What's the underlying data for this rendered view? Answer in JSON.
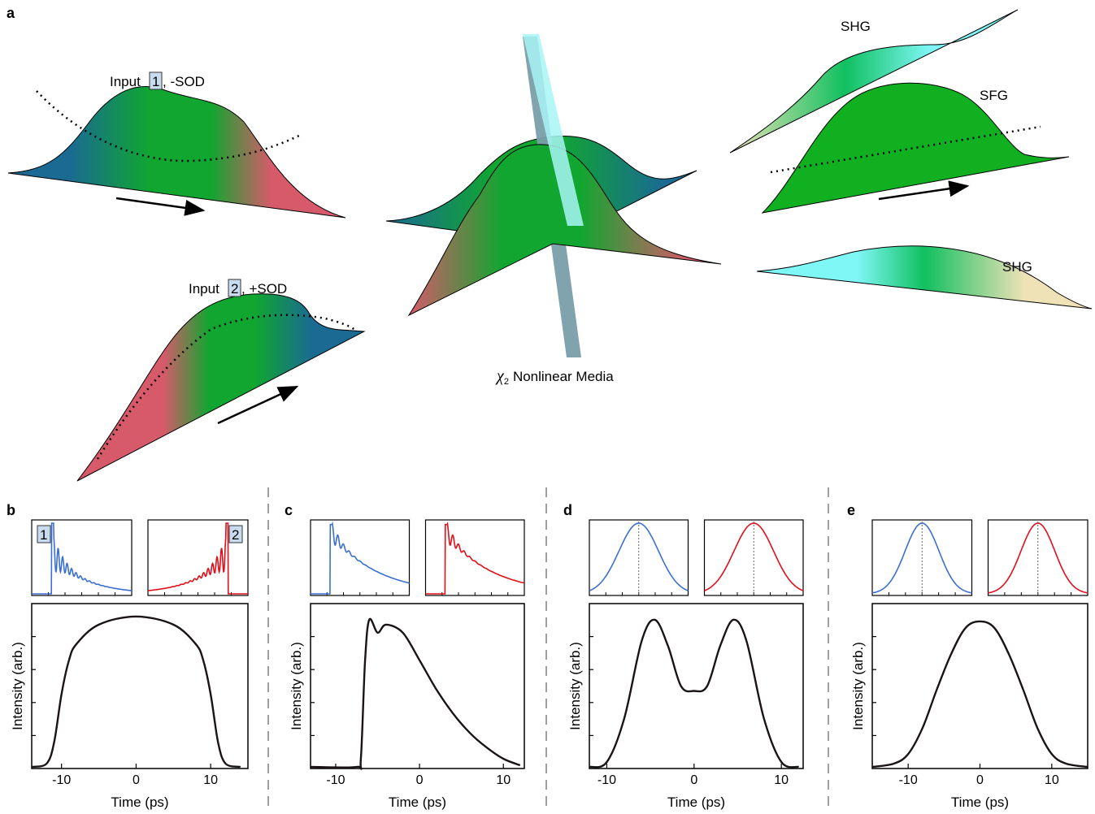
{
  "panel_a": {
    "label": "a",
    "input1": {
      "text_before": "Input",
      "badge": "1",
      "text_after": ", -SOD"
    },
    "input2": {
      "text_before": "Input",
      "badge": "2",
      "text_after": ", +SOD"
    },
    "medium": {
      "symbol": "χ",
      "subscript": "2",
      "text": "Nonlinear Media"
    },
    "outputs": {
      "shg_top": "SHG",
      "sfg": "SFG",
      "shg_bottom": "SHG"
    }
  },
  "panels": [
    {
      "label": "b",
      "badge1": "1",
      "badge2": "2",
      "xlabel": "Time (ps)",
      "ylabel": "Intensity (arb.)",
      "xticks": [
        "-10",
        "0",
        "10"
      ]
    },
    {
      "label": "c",
      "xlabel": "Time (ps)",
      "ylabel": "Intensity (arb.)",
      "xticks": [
        "-10",
        "0",
        "10"
      ]
    },
    {
      "label": "d",
      "xlabel": "Time (ps)",
      "ylabel": "Intensity (arb.)",
      "xticks": [
        "-10",
        "0",
        "10"
      ]
    },
    {
      "label": "e",
      "xlabel": "Time (ps)",
      "ylabel": "Intensity (arb.)",
      "xticks": [
        "-10",
        "0",
        "10"
      ]
    }
  ],
  "colors": {
    "blue": "#3b6fd4",
    "red": "#e0101a",
    "green": "#1aa31a",
    "teal": "#1a6a93",
    "rose": "#d65a6a",
    "cyan": "#7ff7f7",
    "sand": "#efe2b6",
    "badge_fill": "#c9dcef",
    "divider": "#a0a0a0"
  },
  "chart_data": [
    {
      "type": "line",
      "panel": "b",
      "xlabel": "Time (ps)",
      "ylabel": "Intensity (arb.)",
      "xlim": [
        -14,
        15
      ],
      "ylim": [
        0,
        1
      ],
      "x": [
        -14,
        -12,
        -11,
        -10,
        -9,
        -8,
        -5,
        0,
        5,
        8,
        9,
        10,
        11,
        12,
        14
      ],
      "y": [
        0,
        0.02,
        0.15,
        0.45,
        0.66,
        0.76,
        0.88,
        0.93,
        0.88,
        0.76,
        0.66,
        0.45,
        0.15,
        0.02,
        0
      ]
    },
    {
      "type": "line",
      "panel": "c",
      "xlabel": "Time (ps)",
      "ylabel": "Intensity (arb.)",
      "xlim": [
        -13,
        12.5
      ],
      "ylim": [
        0,
        1
      ],
      "x": [
        -13,
        -7.5,
        -7,
        -6.5,
        -6,
        -5,
        -4,
        -2,
        0,
        2,
        4,
        6,
        8,
        10,
        12
      ],
      "y": [
        0,
        0,
        0.05,
        0.65,
        0.91,
        0.83,
        0.88,
        0.83,
        0.66,
        0.48,
        0.33,
        0.21,
        0.12,
        0.05,
        0.01
      ]
    },
    {
      "type": "line",
      "panel": "d",
      "xlabel": "Time (ps)",
      "ylabel": "Intensity (arb.)",
      "xlim": [
        -12,
        12.5
      ],
      "ylim": [
        0,
        1
      ],
      "x": [
        -12,
        -10,
        -8,
        -6,
        -4.5,
        -3,
        -1.5,
        0,
        1.5,
        3,
        4.5,
        6,
        8,
        10,
        12
      ],
      "y": [
        0,
        0.03,
        0.3,
        0.78,
        0.91,
        0.75,
        0.5,
        0.47,
        0.5,
        0.75,
        0.91,
        0.78,
        0.3,
        0.03,
        0
      ]
    },
    {
      "type": "line",
      "panel": "e",
      "xlabel": "Time (ps)",
      "ylabel": "Intensity (arb.)",
      "xlim": [
        -15,
        15
      ],
      "ylim": [
        0,
        1
      ],
      "x": [
        -15,
        -12,
        -10,
        -8,
        -6,
        -4,
        -2,
        0,
        2,
        4,
        6,
        8,
        10,
        12,
        15
      ],
      "y": [
        0,
        0.02,
        0.08,
        0.24,
        0.48,
        0.7,
        0.86,
        0.9,
        0.86,
        0.7,
        0.48,
        0.24,
        0.08,
        0.02,
        0
      ]
    }
  ]
}
